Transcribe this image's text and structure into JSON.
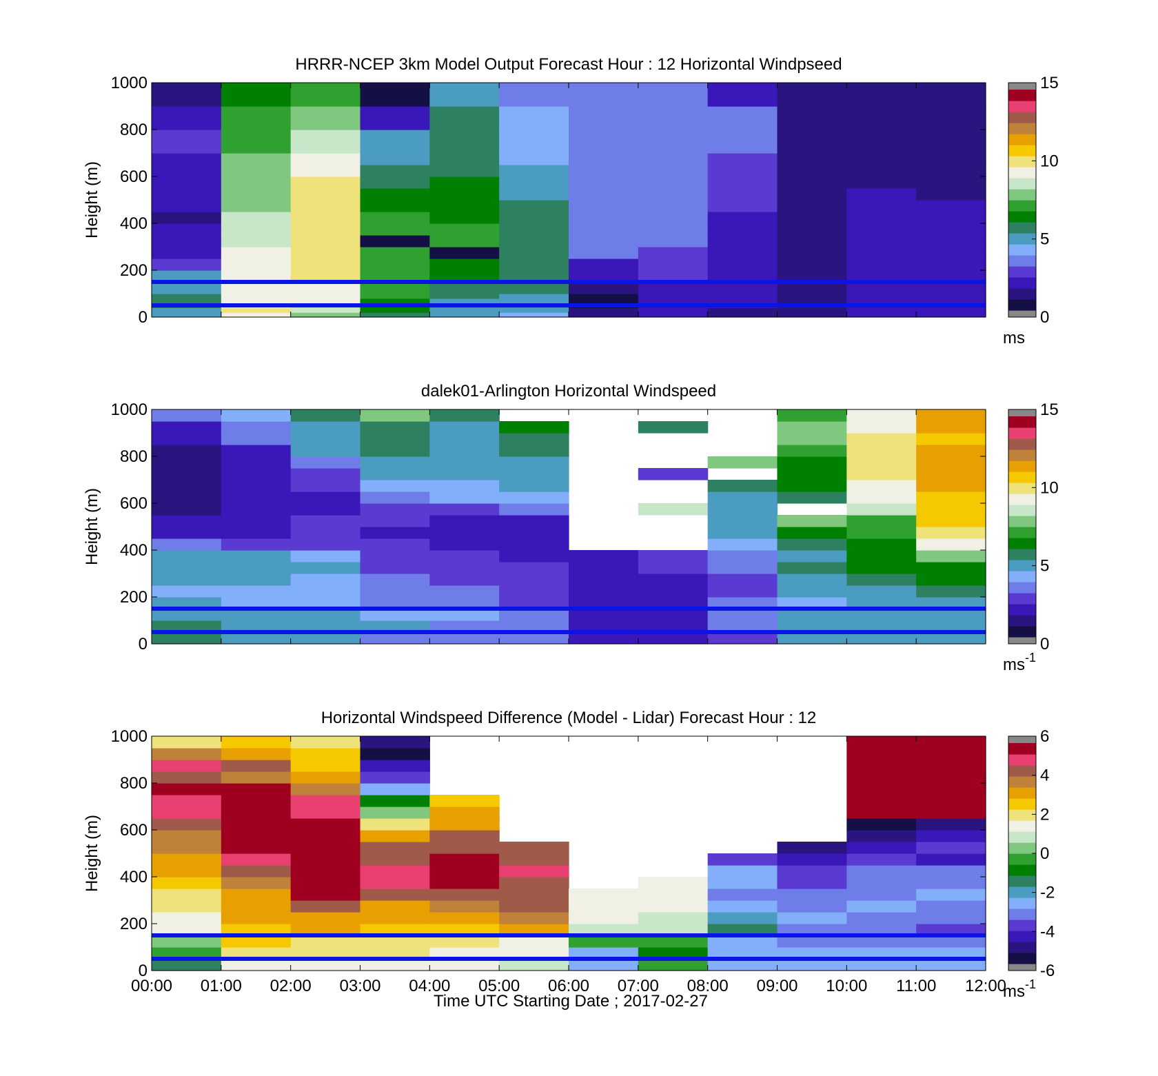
{
  "figure": {
    "xlabel": "Time UTC  Starting Date ; 2017-02-27",
    "xticks": [
      "00:00",
      "01:00",
      "02:00",
      "03:00",
      "04:00",
      "05:00",
      "06:00",
      "07:00",
      "08:00",
      "09:00",
      "10:00",
      "11:00",
      "12:00"
    ]
  },
  "colors": {
    "colormap": [
      "#888888",
      "#140f45",
      "#2a1580",
      "#3a17b8",
      "#5a3ad0",
      "#6f7de8",
      "#82aefa",
      "#4a9cc0",
      "#2d8060",
      "#008000",
      "#30a030",
      "#80c880",
      "#c8e6c8",
      "#f0f0e4",
      "#f0e27a",
      "#f5c800",
      "#e8a000",
      "#c0823a",
      "#a05a4a",
      "#e84070",
      "#a00020",
      "#888888"
    ],
    "lidar_band_line": "#0a14e6"
  },
  "chart_data": [
    {
      "type": "heatmap",
      "title": "HRRR-NCEP 3km Model Output   Forecast Hour : 12 Horizontal Windpseed",
      "ylabel": "Height (m)",
      "xlim": [
        0,
        12
      ],
      "ylim": [
        0,
        1000
      ],
      "yticks": [
        0,
        200,
        400,
        600,
        800,
        1000
      ],
      "clim": [
        0,
        15
      ],
      "colorbar_ticks": [
        0,
        5,
        10,
        15
      ],
      "colorbar_unit": "ms",
      "colorbar_unit_sup": "",
      "hlines": [
        150,
        50
      ],
      "x_edges": [
        0,
        1,
        2,
        3,
        4,
        5,
        6,
        7,
        8,
        9,
        10,
        11,
        12
      ],
      "y_edges": [
        0,
        20,
        40,
        60,
        80,
        100,
        150,
        200,
        250,
        300,
        350,
        400,
        450,
        500,
        550,
        600,
        650,
        700,
        800,
        900,
        1000
      ],
      "values": [
        [
          5,
          5.2,
          5.3,
          5.8,
          5.5,
          4.8,
          4.5,
          2.8,
          1.8,
          2.0,
          1.5,
          1.2,
          1.5,
          1.6,
          1.7,
          1.8,
          1.7,
          2.6,
          1.5,
          0.8
        ],
        [
          9.5,
          10,
          9.5,
          9.4,
          9.3,
          9.2,
          9.2,
          9,
          9,
          8.6,
          8.5,
          8.4,
          8.2,
          8.2,
          8.1,
          8.0,
          7.7,
          7.3,
          7.1,
          6.2
        ],
        [
          7.6,
          8.4,
          8.8,
          9,
          9.2,
          9.5,
          9.8,
          10,
          10,
          10,
          10,
          10,
          10,
          10,
          9.8,
          9.6,
          9.0,
          8.3,
          7.5,
          6.8
        ],
        [
          5.8,
          6.0,
          6.3,
          6.6,
          6.8,
          7.0,
          7.2,
          7.4,
          7.2,
          0,
          7.0,
          6.8,
          6.5,
          6.0,
          5.8,
          5.5,
          4.8,
          4.5,
          2.1,
          0
        ],
        [
          4.8,
          4.6,
          4.8,
          5.0,
          5.5,
          5.8,
          6.2,
          6.4,
          0,
          6.8,
          6.8,
          6.3,
          6.2,
          6.1,
          6.0,
          5.9,
          5.8,
          5.6,
          5.4,
          5.2
        ],
        [
          3.8,
          4.5,
          4.6,
          4.8,
          5.0,
          5.3,
          5.5,
          5.7,
          5.8,
          5.9,
          5.6,
          5.5,
          5.3,
          5.2,
          5.0,
          4.5,
          4.2,
          4.0,
          3.9,
          3.6
        ],
        [
          0.8,
          1.0,
          0,
          0.5,
          0.6,
          0.8,
          1.8,
          2.0,
          3.2,
          3.1,
          3.0,
          3.1,
          3.2,
          3.3,
          3.4,
          3.4,
          3.3,
          3.3,
          3.3,
          3.3
        ],
        [
          1.6,
          1.7,
          1.8,
          2.0,
          2.1,
          2.1,
          2.3,
          2.6,
          2.8,
          3.0,
          3.4,
          3.4,
          3.4,
          3.4,
          3.4,
          3.4,
          3.4,
          3.4,
          3.5,
          3.5
        ],
        [
          0.8,
          1.2,
          1.5,
          1.8,
          1.9,
          1.9,
          2.1,
          2.1,
          2.0,
          2.1,
          2.2,
          2.2,
          2.4,
          2.5,
          2.6,
          2.6,
          2.8,
          3.0,
          3.0,
          2.0
        ],
        [
          0.8,
          0.9,
          1.0,
          1.0,
          1.1,
          1.1,
          1.2,
          1.2,
          1.2,
          1.2,
          1.2,
          1.2,
          1.2,
          1.2,
          1.2,
          1.2,
          1.2,
          1.2,
          1.1,
          1.0
        ],
        [
          1.6,
          1.7,
          1.9,
          1.9,
          1.8,
          1.8,
          2.0,
          2.1,
          2.1,
          2.0,
          1.8,
          1.7,
          1.6,
          1.5,
          1.4,
          1.3,
          1.2,
          1.1,
          1.0,
          0.9
        ],
        [
          1.5,
          1.6,
          1.7,
          1.8,
          1.8,
          1.8,
          1.7,
          1.6,
          1.6,
          1.5,
          1.5,
          1.5,
          1.5,
          1.4,
          1.4,
          1.4,
          1.3,
          1.3,
          1.3,
          1.3
        ]
      ]
    },
    {
      "type": "heatmap",
      "title": "dalek01-Arlington  Horizontal Windspeed",
      "ylabel": "Height (m)",
      "xlim": [
        0,
        12
      ],
      "ylim": [
        0,
        1000
      ],
      "yticks": [
        0,
        200,
        400,
        600,
        800,
        1000
      ],
      "clim": [
        0,
        15
      ],
      "colorbar_ticks": [
        0,
        5,
        10,
        15
      ],
      "colorbar_unit": "ms",
      "colorbar_unit_sup": "-1",
      "hlines": [
        150,
        50
      ],
      "x_edges": [
        0,
        1,
        2,
        3,
        4,
        5,
        6,
        7,
        8,
        9,
        10,
        11,
        12
      ],
      "y_edges": [
        0,
        50,
        100,
        150,
        200,
        250,
        300,
        350,
        400,
        450,
        500,
        550,
        600,
        650,
        700,
        750,
        800,
        850,
        900,
        950,
        1000
      ],
      "values": [
        [
          5.5,
          5.8,
          5.2,
          4.6,
          4.4,
          4.8,
          5.1,
          5.0,
          3.6,
          1.9,
          1.5,
          1.2,
          1.0,
          0.9,
          1.0,
          1.1,
          1.3,
          2.0,
          2.2,
          3.0
        ],
        [
          5.2,
          5.0,
          4.6,
          4.4,
          4.4,
          4.8,
          4.7,
          4.6,
          2.8,
          1.9,
          2.0,
          2.2,
          2.1,
          1.7,
          1.9,
          1.8,
          2.2,
          3.1,
          3.2,
          4.3
        ],
        [
          5.0,
          4.8,
          4.5,
          3.9,
          3.8,
          4.3,
          4.5,
          4.0,
          2.9,
          2.6,
          2.7,
          2.2,
          2.1,
          2.3,
          2.8,
          3.5,
          4.6,
          4.8,
          5.2,
          5.6
        ],
        [
          3.5,
          4.5,
          4.0,
          3.4,
          3.3,
          3.0,
          2.9,
          2.8,
          2.4,
          2.0,
          2.3,
          2.8,
          3.2,
          4.0,
          4.6,
          5.0,
          5.4,
          5.5,
          5.8,
          8.0
        ],
        [
          3.2,
          3.6,
          4.1,
          3.6,
          3.2,
          2.8,
          2.3,
          2.3,
          1.8,
          1.6,
          2.2,
          2.9,
          3.8,
          4.4,
          4.8,
          5.0,
          4.9,
          4.8,
          5.2,
          5.6
        ],
        [
          3.1,
          3.1,
          3.2,
          2.8,
          2.5,
          2.5,
          2.3,
          2.1,
          1.6,
          1.5,
          2.1,
          3.2,
          4.3,
          4.7,
          4.8,
          5.2,
          5.6,
          5.7,
          6.0,
          null
        ],
        [
          2.2,
          2.0,
          2.1,
          2.0,
          1.9,
          1.8,
          1.6,
          1.6,
          null,
          null,
          null,
          null,
          null,
          null,
          null,
          null,
          null,
          null,
          null,
          null
        ],
        [
          2.2,
          2.0,
          2.1,
          2.0,
          1.9,
          2.2,
          2.3,
          2.8,
          null,
          null,
          null,
          8.8,
          null,
          null,
          2.6,
          null,
          null,
          null,
          5.5,
          null
        ],
        [
          2.8,
          3.2,
          3.5,
          3.1,
          2.6,
          2.9,
          3.1,
          3.2,
          4.2,
          5.2,
          5.1,
          5.2,
          5.0,
          5.8,
          null,
          7.8,
          null,
          null,
          null,
          null
        ],
        [
          4.5,
          4.8,
          5.0,
          4.2,
          4.8,
          5.0,
          5.3,
          5.2,
          5.8,
          6.0,
          8.2,
          null,
          5.5,
          6.2,
          6.4,
          6.5,
          7.0,
          8.0,
          7.8,
          7.0
        ],
        [
          4.6,
          4.7,
          5.2,
          5.0,
          5.1,
          5.6,
          6.2,
          6.0,
          6.2,
          6.8,
          7.4,
          8.8,
          9.2,
          9.6,
          9.8,
          10,
          9.9,
          9.8,
          9.5,
          9.5
        ],
        [
          4.5,
          4.6,
          5.0,
          5.2,
          5.8,
          6.0,
          6.5,
          7.5,
          9.6,
          10.4,
          10.6,
          11.0,
          11.2,
          11.4,
          11.5,
          11.4,
          11.3,
          11.2,
          11.5,
          11.8
        ]
      ]
    },
    {
      "type": "heatmap",
      "title": "Horizontal Windspeed Difference (Model - Lidar) Forecast Hour : 12",
      "ylabel": "Height (m)",
      "xlim": [
        0,
        12
      ],
      "ylim": [
        0,
        1000
      ],
      "yticks": [
        0,
        200,
        400,
        600,
        800,
        1000
      ],
      "clim": [
        -6,
        6
      ],
      "colorbar_ticks": [
        -6,
        -4,
        -2,
        0,
        2,
        4,
        6
      ],
      "colorbar_unit": "ms",
      "colorbar_unit_sup": "-1",
      "hlines": [
        150,
        50
      ],
      "x_edges": [
        0,
        1,
        2,
        3,
        4,
        5,
        6,
        7,
        8,
        9,
        10,
        11,
        12
      ],
      "y_edges": [
        0,
        50,
        100,
        150,
        200,
        250,
        300,
        350,
        400,
        450,
        500,
        550,
        600,
        650,
        700,
        750,
        800,
        850,
        900,
        950,
        1000
      ],
      "values": [
        [
          -1.5,
          -0.5,
          0.2,
          1.5,
          1.6,
          1.8,
          2.2,
          2.5,
          3.0,
          3.5,
          3.8,
          4.0,
          4.5,
          5.0,
          5.2,
          6.0,
          4.5,
          4.8,
          4.0,
          2.0
        ],
        [
          1.2,
          1.8,
          2.8,
          2.8,
          3.0,
          3.2,
          3.5,
          4.0,
          4.2,
          5.0,
          6.0,
          6.0,
          6.0,
          6.0,
          6.0,
          6.0,
          3.8,
          4.5,
          3.2,
          2.8
        ],
        [
          1.5,
          1.8,
          2.2,
          3.0,
          3.4,
          4.4,
          6.0,
          6.0,
          6.0,
          6.0,
          6.0,
          6.0,
          6.2,
          5.2,
          4.8,
          4.0,
          3.0,
          2.8,
          2.5,
          2.3
        ],
        [
          1.5,
          1.8,
          2.0,
          2.8,
          3.2,
          3.5,
          4.5,
          5.0,
          5.2,
          4.6,
          4.4,
          3.5,
          2.2,
          0.5,
          -1.0,
          -2.5,
          -4.0,
          -4.6,
          -5.4,
          -5.0
        ],
        [
          1.4,
          1.5,
          1.8,
          2.8,
          3.3,
          3.8,
          4.2,
          6.0,
          6.0,
          6.0,
          4.5,
          4.2,
          3.4,
          3.0,
          2.5,
          null,
          null,
          null,
          null,
          null
        ],
        [
          0.8,
          1.2,
          1.5,
          3.0,
          4.0,
          4.2,
          4.5,
          4.6,
          4.8,
          4.6,
          4.3,
          null,
          null,
          null,
          null,
          null,
          null,
          null,
          null,
          null
        ],
        [
          -3.0,
          -2.8,
          -0.5,
          0.8,
          1.2,
          1.5,
          1.6,
          null,
          null,
          null,
          null,
          null,
          null,
          null,
          null,
          null,
          null,
          null,
          null,
          null
        ],
        [
          -0.5,
          -0.8,
          -0.2,
          0.9,
          1.1,
          1.3,
          1.4,
          1.5,
          null,
          null,
          null,
          null,
          null,
          null,
          null,
          null,
          null,
          null,
          null,
          null
        ],
        [
          -2.8,
          -2.9,
          -2.5,
          -1.2,
          -2.2,
          -2.8,
          -3.1,
          -2.8,
          -2.6,
          -3.8,
          null,
          null,
          null,
          null,
          null,
          null,
          null,
          null,
          null,
          null
        ],
        [
          -3.0,
          -2.8,
          -3.5,
          -3.2,
          -3.0,
          -3.1,
          -3.2,
          -3.6,
          -4.2,
          -4.8,
          -5.2,
          null,
          null,
          null,
          null,
          null,
          null,
          null,
          null,
          null
        ],
        [
          -2.8,
          -3.0,
          -3.2,
          -3.1,
          -3.1,
          -3.0,
          -3.2,
          -3.3,
          -3.4,
          -4.0,
          -4.6,
          -5.2,
          -5.6,
          6.0,
          6.0,
          6.0,
          6.0,
          6.0,
          6.0,
          6.0
        ],
        [
          -3.0,
          -2.9,
          -3.2,
          -3.6,
          -3.2,
          -3.5,
          -3.0,
          -3.2,
          -3.3,
          -4.5,
          -4.0,
          -4.8,
          -5.0,
          6.0,
          6.0,
          6.0,
          6.0,
          6.0,
          6.0,
          6.0
        ]
      ]
    }
  ]
}
